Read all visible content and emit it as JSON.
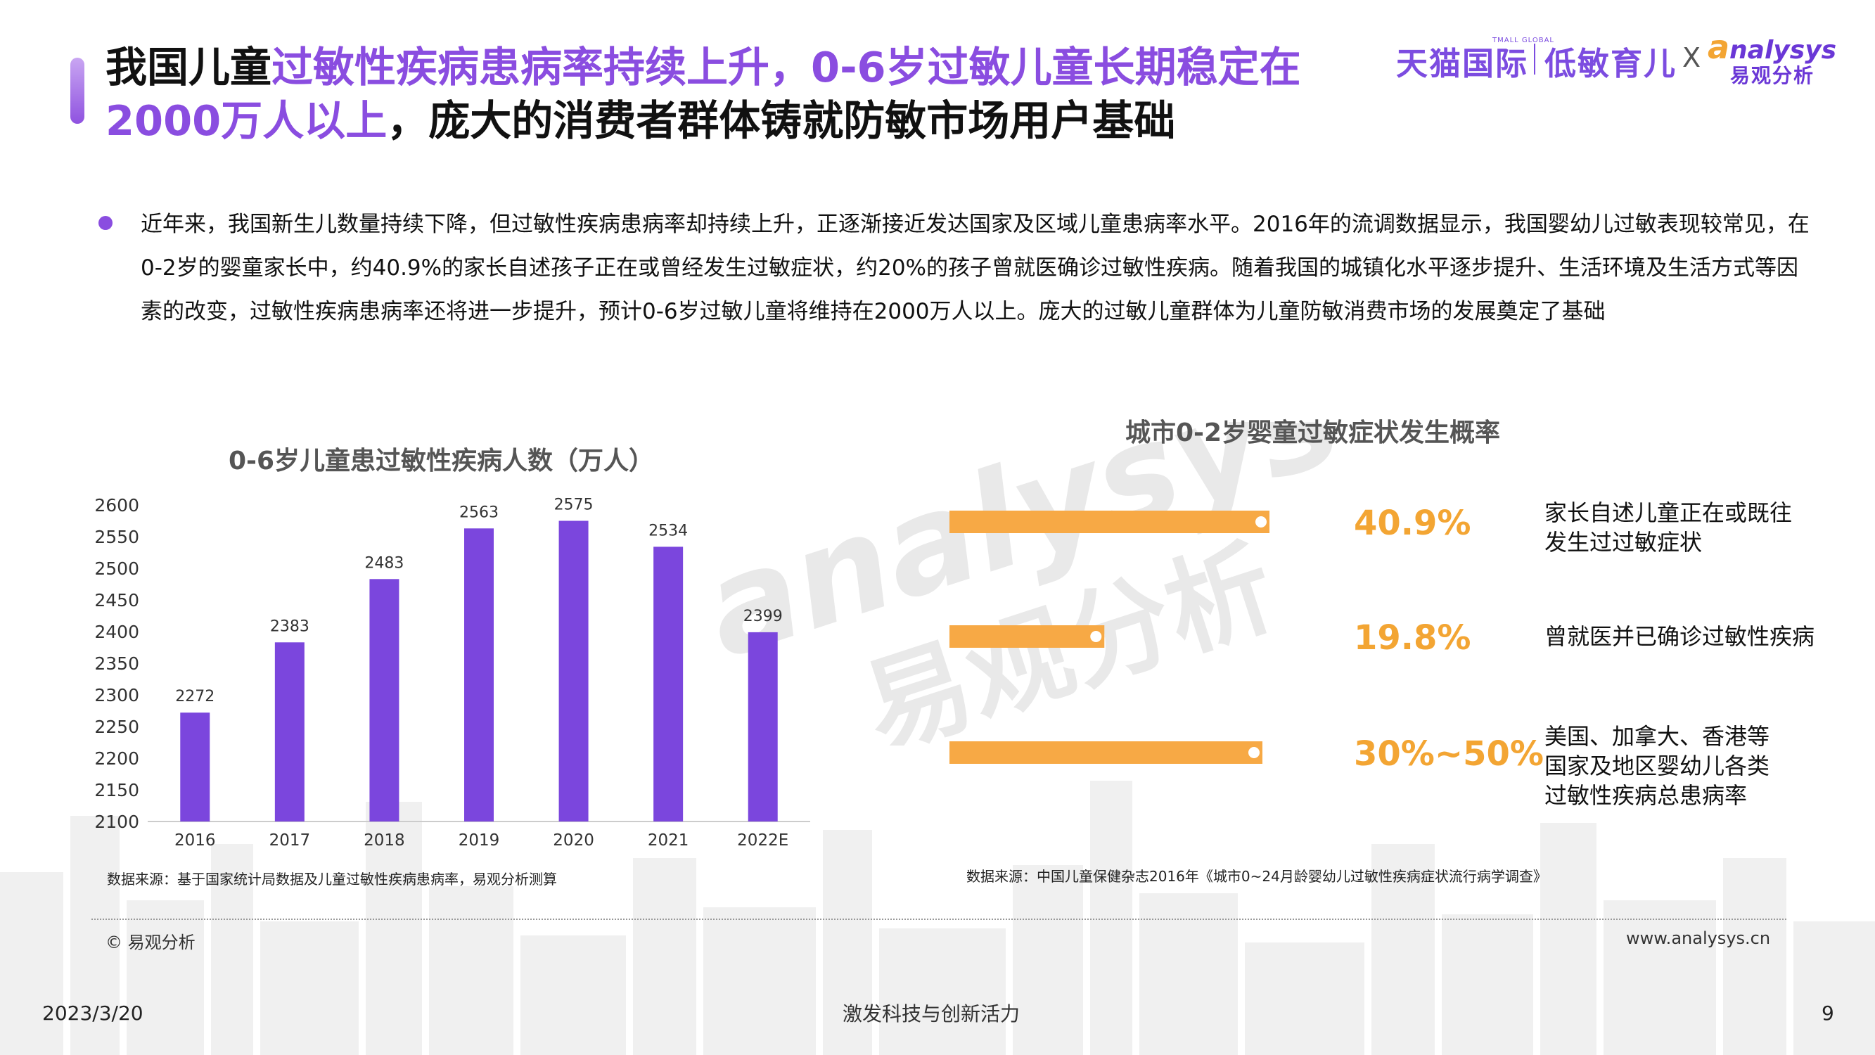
{
  "header": {
    "title_part1": "我国儿童",
    "title_part2": "过敏性疾病患病率持续上升，0-6岁过敏儿童长期稳定在",
    "title_part3": "2000万人以上",
    "title_part4": "，庞大的消费者群体铸就防敏市场用户基础",
    "brand_tmall": "天猫国际",
    "brand_tmall_sub": "TMALL GLOBAL",
    "brand_low": "低敏育儿",
    "brand_x": "X",
    "brand_analysys_a": "a",
    "brand_analysys_rest": "nalysys",
    "brand_yiguan": "易观分析"
  },
  "body": {
    "paragraph": "近年来，我国新生儿数量持续下降，但过敏性疾病患病率却持续上升，正逐渐接近发达国家及区域儿童患病率水平。2016年的流调数据显示，我国婴幼儿过敏表现较常见，在0-2岁的婴童家长中，约40.9%的家长自述孩子正在或曾经发生过敏症状，约20%的孩子曾就医确诊过敏性疾病。随着我国的城镇化水平逐步提升、生活环境及生活方式等因素的改变，过敏性疾病患病率还将进一步提升，预计0-6岁过敏儿童将维持在2000万人以上。庞大的过敏儿童群体为儿童防敏消费市场的发展奠定了基础"
  },
  "chart_data": [
    {
      "type": "bar",
      "title": "0-6岁儿童患过敏性疾病人数（万人）",
      "categories": [
        "2016",
        "2017",
        "2018",
        "2019",
        "2020",
        "2021",
        "2022E"
      ],
      "values": [
        2272,
        2383,
        2483,
        2563,
        2575,
        2534,
        2399
      ],
      "ylim": [
        2100,
        2600
      ],
      "yticks": [
        2100,
        2150,
        2200,
        2250,
        2300,
        2350,
        2400,
        2450,
        2500,
        2550,
        2600
      ],
      "xlabel": "",
      "ylabel": "",
      "grid": false,
      "color": "#7b46dd",
      "source": "数据来源：基于国家统计局数据及儿童过敏性疾病患病率，易观分析测算"
    },
    {
      "type": "bar",
      "orientation": "horizontal",
      "title": "城市0-2岁婴童过敏症状发生概率",
      "items": [
        {
          "label": "家长自述儿童正在或既往发生过过敏症状",
          "label_lines": [
            "家长自述儿童正在或既往",
            "发生过过敏症状"
          ],
          "value": 40.9,
          "value_label": "40.9%"
        },
        {
          "label": "曾就医并已确诊过敏性疾病",
          "label_lines": [
            "曾就医并已确诊过敏性疾病"
          ],
          "value": 19.8,
          "value_label": "19.8%"
        },
        {
          "label": "美国、加拿大、香港等国家及地区婴幼儿各类过敏性疾病总患病率",
          "label_lines": [
            "美国、加拿大、香港等",
            "国家及地区婴幼儿各类",
            "过敏性疾病总患病率"
          ],
          "value": 40,
          "value_range": [
            30,
            50
          ],
          "value_label": "30%~50%"
        }
      ],
      "color": "#f7a945",
      "value_color": "#f3a533",
      "source": "数据来源：中国儿童保健杂志2016年《城市0~24月龄婴幼儿过敏性疾病症状流行病学调查》"
    }
  ],
  "footer": {
    "copyright": "© 易观分析",
    "website": "www.analysys.cn",
    "date": "2023/3/20",
    "slogan": "激发科技与创新活力",
    "page": "9"
  },
  "watermark": {
    "line1": "analysys",
    "line2": "易观分析"
  }
}
